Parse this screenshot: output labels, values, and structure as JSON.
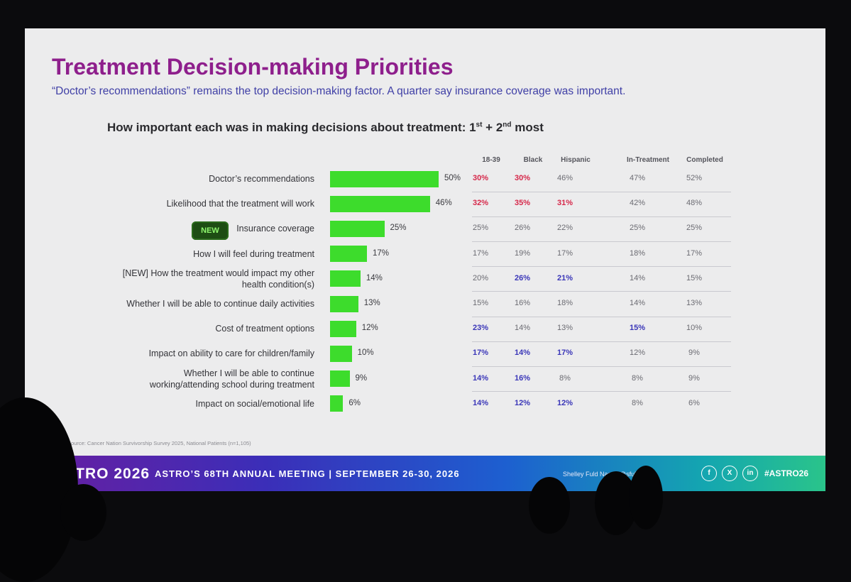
{
  "slide": {
    "title": "Treatment Decision-making Priorities",
    "subtitle": "“Doctor’s recommendations” remains the top decision-making factor. A quarter say insurance coverage was important.",
    "question_main": "How important each was in making decisions about treatment: 1",
    "question_sup1": "st",
    "question_mid": " + 2",
    "question_sup2": "nd",
    "question_end": " most",
    "new_badge": "NEW",
    "source": "Source: Cancer Nation Survivorship Survey 2025, National Patients (n=1,105)"
  },
  "chart_data": {
    "type": "bar",
    "orientation": "horizontal",
    "categories": [
      "Doctor’s recommendations",
      "Likelihood that the treatment will work",
      "Insurance coverage",
      "How I will feel during treatment",
      "[NEW] How the treatment would impact my other health condition(s)",
      "Whether I will be able to continue daily activities",
      "Cost of treatment options",
      "Impact on ability to care for children/family",
      "Whether I will be able to continue working/attending school during treatment",
      "Impact on social/emotional life"
    ],
    "category_lines": [
      [
        "Doctor’s recommendations"
      ],
      [
        "Likelihood that the treatment will work"
      ],
      [
        "Insurance coverage"
      ],
      [
        "How I will feel during treatment"
      ],
      [
        "[NEW] How the treatment would impact my other",
        "health condition(s)"
      ],
      [
        "Whether I will be able to continue daily activities"
      ],
      [
        "Cost of treatment options"
      ],
      [
        "Impact on ability to care for children/family"
      ],
      [
        "Whether I will be able to continue",
        "working/attending school during treatment"
      ],
      [
        "Impact on social/emotional life"
      ]
    ],
    "values": [
      50,
      46,
      25,
      17,
      14,
      13,
      12,
      10,
      9,
      6
    ],
    "value_labels": [
      "50%",
      "46%",
      "25%",
      "17%",
      "14%",
      "13%",
      "12%",
      "10%",
      "9%",
      "6%"
    ],
    "bar_color": "#3ddc2c",
    "xlim": [
      0,
      100
    ],
    "grid": false,
    "table_columns": [
      "18-39",
      "Black",
      "Hispanic",
      "In-Treatment",
      "Completed"
    ],
    "table": [
      [
        "30%",
        "30%",
        "46%",
        "47%",
        "52%"
      ],
      [
        "32%",
        "35%",
        "31%",
        "42%",
        "48%"
      ],
      [
        "25%",
        "26%",
        "22%",
        "25%",
        "25%"
      ],
      [
        "17%",
        "19%",
        "17%",
        "18%",
        "17%"
      ],
      [
        "20%",
        "26%",
        "21%",
        "14%",
        "15%"
      ],
      [
        "15%",
        "16%",
        "18%",
        "14%",
        "13%"
      ],
      [
        "23%",
        "14%",
        "13%",
        "15%",
        "10%"
      ],
      [
        "17%",
        "14%",
        "17%",
        "12%",
        "9%"
      ],
      [
        "14%",
        "16%",
        "8%",
        "8%",
        "9%"
      ],
      [
        "14%",
        "12%",
        "12%",
        "8%",
        "6%"
      ]
    ],
    "table_highlight": [
      [
        "red",
        "red",
        "",
        "",
        ""
      ],
      [
        "red",
        "red",
        "red",
        "",
        ""
      ],
      [
        "",
        "",
        "",
        "",
        ""
      ],
      [
        "",
        "",
        "",
        "",
        ""
      ],
      [
        "",
        "blue",
        "blue",
        "",
        ""
      ],
      [
        "",
        "",
        "",
        "",
        ""
      ],
      [
        "blue",
        "",
        "",
        "blue",
        ""
      ],
      [
        "blue",
        "blue",
        "blue",
        "",
        ""
      ],
      [
        "blue",
        "blue",
        "",
        "",
        ""
      ],
      [
        "blue",
        "blue",
        "blue",
        "",
        ""
      ]
    ],
    "highlight_colors": {
      "red": "#d6284a",
      "blue": "#3a36b8"
    }
  },
  "footer": {
    "logo": "ASTRO 2026",
    "meeting": "ASTRO’S 68TH ANNUAL MEETING  |  SEPTEMBER 26-30, 2026",
    "speaker": "Shelley Fuld Nasso  @sfuldnasso",
    "social": [
      "f",
      "X",
      "in"
    ],
    "social_icons": [
      "facebook-icon",
      "x-icon",
      "linkedin-icon"
    ],
    "hashtag": "#ASTRO26"
  }
}
